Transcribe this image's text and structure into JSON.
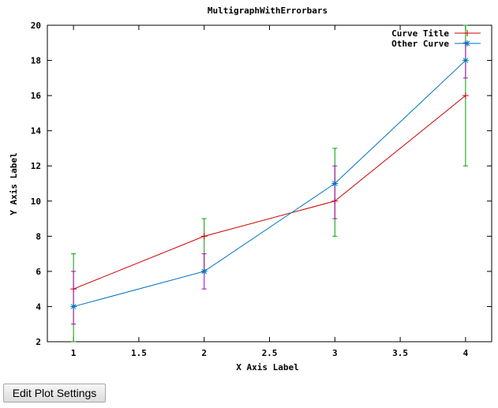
{
  "chart_data": {
    "type": "line",
    "title": "MultigraphWithErrorbars",
    "xlabel": "X Axis Label",
    "ylabel": "Y Axis Label",
    "xlim": [
      0.8,
      4.2
    ],
    "ylim": [
      2,
      20
    ],
    "x_ticks": [
      1,
      1.5,
      2,
      2.5,
      3,
      3.5,
      4
    ],
    "x_tick_labels": [
      "1",
      "1.5",
      "2",
      "2.5",
      "3",
      "3.5",
      "4"
    ],
    "y_ticks": [
      2,
      4,
      6,
      8,
      10,
      12,
      14,
      16,
      18,
      20
    ],
    "y_tick_labels": [
      "2",
      "4",
      "6",
      "8",
      "10",
      "12",
      "14",
      "16",
      "18",
      "20"
    ],
    "grid": false,
    "legend_position": "top-right",
    "series": [
      {
        "name": "Curve Title",
        "color": "#cc0000",
        "errorbar_color": "#00a000",
        "marker": "plus",
        "x": [
          1,
          2,
          3,
          4
        ],
        "y": [
          5,
          8,
          10,
          16
        ],
        "yerr_low": [
          2,
          6,
          8,
          12
        ],
        "yerr_high": [
          7,
          9,
          13,
          20
        ]
      },
      {
        "name": "Other Curve",
        "color": "#0070c0",
        "errorbar_color": "#b000b0",
        "marker": "star",
        "x": [
          1,
          2,
          3,
          4
        ],
        "y": [
          4,
          6,
          11,
          18
        ],
        "yerr_low": [
          3,
          5,
          9,
          17
        ],
        "yerr_high": [
          6,
          7,
          12,
          19
        ]
      }
    ]
  },
  "button": {
    "label": "Edit Plot Settings"
  }
}
